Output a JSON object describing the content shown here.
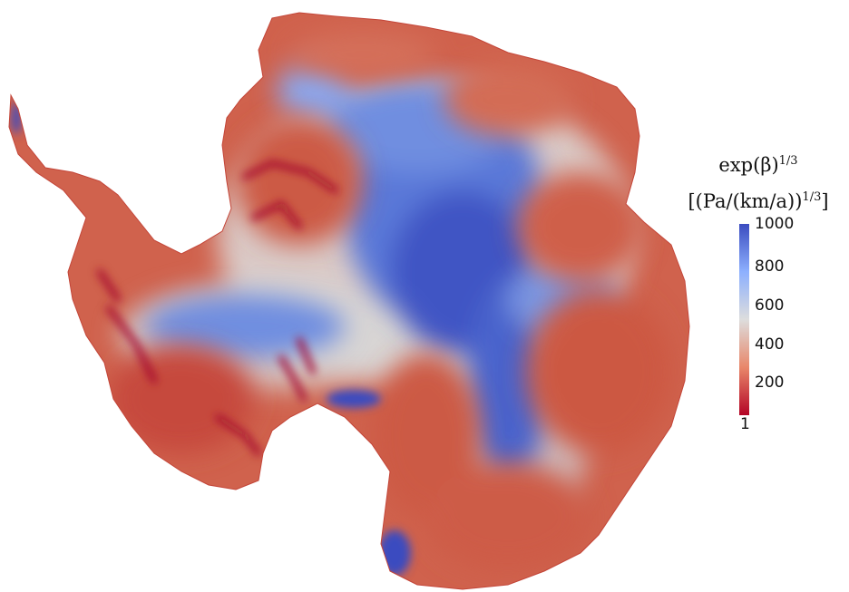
{
  "legend": {
    "title_line1_base": "exp(β)",
    "title_line1_exp": "1/3",
    "title_line2_base": "[(Pa/(km/a))",
    "title_line2_exp": "1/3",
    "title_line2_end": "]",
    "ticks": [
      "1000",
      "800",
      "600",
      "400",
      "200",
      "1"
    ],
    "colors": {
      "low": "#b40426",
      "mid_low": "#e8876a",
      "mid": "#dddddd",
      "mid_high": "#8db0fe",
      "high": "#3b4cc0"
    }
  }
}
